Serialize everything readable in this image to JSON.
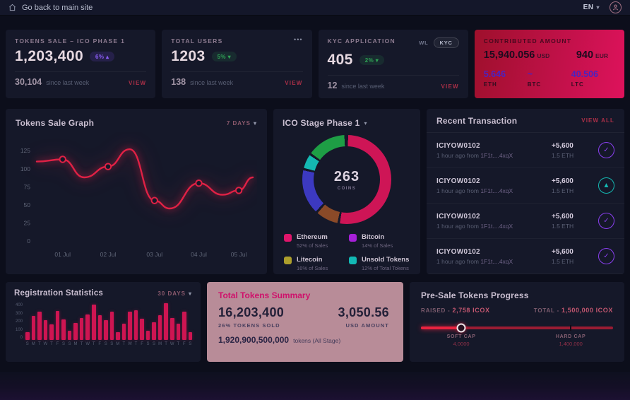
{
  "topbar": {
    "back_label": "Go back to main site",
    "lang": "EN"
  },
  "icons": {
    "chevron_down": "▾",
    "tilde": "~"
  },
  "stat_cards": [
    {
      "title": "TOKENS SALE – ICO PHASE 1",
      "value": "1,203,400",
      "badge_text": "6%",
      "badge_arrow": "▴",
      "delta_value": "30,104",
      "delta_note": "since last week",
      "action": "VIEW"
    },
    {
      "title": "TOTAL USERS",
      "menu_dots": "•••",
      "value": "1203",
      "badge_text": "5%",
      "badge_arrow": "▾",
      "delta_value": "138",
      "delta_note": "since last week",
      "action": "VIEW"
    },
    {
      "title": "KYC APPLICATION",
      "tab_wl": "WL",
      "tab_kyc": "KYC",
      "value": "405",
      "badge_text": "2%",
      "badge_arrow": "▾",
      "delta_value": "12",
      "delta_note": "since last week",
      "action": "VIEW"
    }
  ],
  "contributed_card": {
    "title": "CONTRIBUTED AMOUNT",
    "fiat": [
      {
        "value": "15,940.056",
        "unit": "USD"
      },
      {
        "value": "940",
        "unit": "EUR"
      }
    ],
    "crypto": [
      {
        "value": "5.646",
        "unit": "ETH"
      },
      {
        "value": "~",
        "unit": "BTC"
      },
      {
        "value": "40.506",
        "unit": "LTC"
      }
    ]
  },
  "recent_transactions": {
    "title": "Recent Transaction",
    "action": "VIEW ALL",
    "rows": [
      {
        "id": "ICIYOW0102",
        "time": "1 hour ago from",
        "address": "1F1t....4xqX",
        "amount": "+5,600",
        "amount_sub": "1.5 ETH",
        "icon": "check",
        "icon_color": "#8a3ff0"
      },
      {
        "id": "ICIYOW0102",
        "time": "1 hour ago from",
        "address": "1F1t....4xqX",
        "amount": "+5,600",
        "amount_sub": "1.5 ETH",
        "icon": "arrow-up",
        "icon_color": "#14b8b2"
      },
      {
        "id": "ICIYOW0102",
        "time": "1 hour ago from",
        "address": "1F1t....4xqX",
        "amount": "+5,600",
        "amount_sub": "1.5 ETH",
        "icon": "check",
        "icon_color": "#8a3ff0"
      },
      {
        "id": "ICIYOW0102",
        "time": "1 hour ago from",
        "address": "1F1t....4xqX",
        "amount": "+5,600",
        "amount_sub": "1.5 ETH",
        "icon": "check",
        "icon_color": "#8a3ff0"
      }
    ]
  },
  "total_tokens_summary": {
    "title": "Total Tokens Summary",
    "tokens_value": "16,203,400",
    "tokens_label": "26% TOKENS SOLD",
    "usd_value": "3,050.56",
    "usd_label": "USD AMOUNT",
    "all_value": "1,920,900,500,000",
    "all_note": "tokens (All Stage)"
  },
  "presale_progress": {
    "title": "Pre-Sale Tokens Progress",
    "raised_label": "RAISED -",
    "raised_value": "2,758 ICOX",
    "total_label": "TOTAL -",
    "total_value": "1,500,000 ICOX",
    "progress_pct": 21,
    "hardcap_pct": 78,
    "soft_cap_label": "SOFT CAP",
    "soft_cap_value": "4,0000",
    "hard_cap_label": "HARD CAP",
    "hard_cap_value": "1,400,000"
  },
  "chart_data": [
    {
      "type": "line",
      "title": "Tokens Sale Graph",
      "range": "7 DAYS",
      "color": "#e02145",
      "yticks": [
        0,
        25,
        50,
        75,
        100,
        125
      ],
      "ylim": [
        0,
        135
      ],
      "xticklabels": [
        "01 Jul",
        "02 Jul",
        "03 Jul",
        "04 Jul",
        "05 Jul"
      ],
      "points": [
        {
          "x": 0.0,
          "y": 110
        },
        {
          "x": 0.12,
          "y": 113,
          "marker": true,
          "tick": "01 Jul"
        },
        {
          "x": 0.22,
          "y": 88
        },
        {
          "x": 0.33,
          "y": 103,
          "marker": true,
          "tick": "02 Jul"
        },
        {
          "x": 0.43,
          "y": 127
        },
        {
          "x": 0.545,
          "y": 56,
          "marker": true,
          "tick": "03 Jul"
        },
        {
          "x": 0.615,
          "y": 45
        },
        {
          "x": 0.75,
          "y": 80,
          "marker": true,
          "tick": "04 Jul"
        },
        {
          "x": 0.86,
          "y": 64
        },
        {
          "x": 0.935,
          "y": 70,
          "marker": true,
          "tick": "05 Jul"
        },
        {
          "x": 1.0,
          "y": 88
        }
      ]
    },
    {
      "type": "pie",
      "title": "ICO Stage Phase 1",
      "center_value": "263",
      "center_label": "COINS",
      "arcs": [
        {
          "pct": 52,
          "color": "#ce1556"
        },
        {
          "pct": 8,
          "color": "#8a4a28"
        },
        {
          "pct": 16,
          "color": "#3c39c0"
        },
        {
          "pct": 5,
          "color": "#14b8b2"
        },
        {
          "pct": 14,
          "color": "#1e9e45"
        }
      ],
      "legend": [
        {
          "label": "Ethereum",
          "note": "52% of Sales",
          "color": "#e0156b"
        },
        {
          "label": "Bitcoin",
          "note": "14% of Sales",
          "color": "#a620d8"
        },
        {
          "label": "Litecoin",
          "note": "16% of Sales",
          "color": "#ad9f2c"
        },
        {
          "label": "Unsold Tokens",
          "note": "12% of Total Tokens",
          "color": "#12b8b4"
        }
      ]
    },
    {
      "type": "bar",
      "title": "Registration Statistics",
      "range": "30 DAYS",
      "color": "#ce1552",
      "yticks": [
        400,
        300,
        200,
        100,
        0
      ],
      "ylim": [
        0,
        430
      ],
      "day_labels": [
        "S",
        "M",
        "T",
        "W",
        "T",
        "F",
        "S"
      ],
      "values": [
        90,
        280,
        330,
        230,
        185,
        340,
        240,
        105,
        195,
        260,
        300,
        410,
        290,
        230,
        330,
        95,
        190,
        330,
        345,
        250,
        105,
        210,
        290,
        430,
        260,
        190,
        330,
        90
      ]
    }
  ]
}
